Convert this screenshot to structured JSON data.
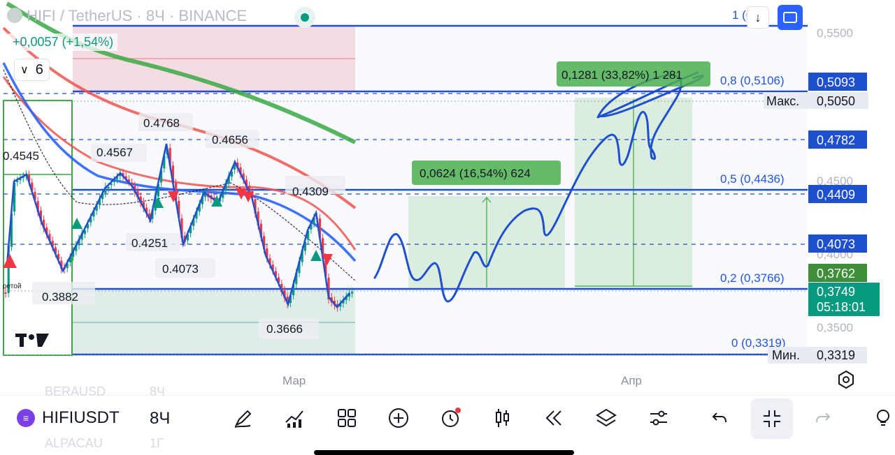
{
  "header": {
    "symbol": "HIFI / TetherUS",
    "interval": "8Ч",
    "exchange": "BINANCE",
    "change": "+0,0057 (+1,54%)",
    "collapse_count": "6"
  },
  "chart_data": {
    "type": "candlestick",
    "price_axis": {
      "ylim": [
        0.3319,
        0.55
      ],
      "ticks": [
        "0,5500",
        "0,4500",
        "0,4000",
        "0,3500"
      ]
    },
    "time_axis": {
      "ticks": [
        "Мар",
        "Апр"
      ]
    },
    "price_labels": [
      {
        "value": "0,5093",
        "kind": "line"
      },
      {
        "value": "0,5050",
        "kind": "max",
        "label": "Макс."
      },
      {
        "value": "0,4782",
        "kind": "line"
      },
      {
        "value": "0,4409",
        "kind": "line"
      },
      {
        "value": "0,4073",
        "kind": "line"
      },
      {
        "value": "0,3762",
        "kind": "green"
      },
      {
        "value": "0,3749",
        "kind": "current",
        "countdown": "05:18:01"
      },
      {
        "value": "0,3319",
        "kind": "min",
        "label": "Мин."
      }
    ],
    "fib_levels": [
      {
        "label": "1 (0,55",
        "price": 0.55
      },
      {
        "label": "0,8 (0,5106)",
        "price": 0.5106
      },
      {
        "label": "0,5 (0,4436)",
        "price": 0.4436
      },
      {
        "label": "0,2 (0,3766)",
        "price": 0.3766
      },
      {
        "label": "0 (0,3319)",
        "price": 0.3319
      }
    ],
    "swing_labels": [
      "0.4545",
      "0.4567",
      "0.4768",
      "0.4656",
      "0.4309",
      "0.4251",
      "0.4073",
      "0.3882",
      "0.3666"
    ],
    "measure_labels": [
      "0,0624 (16,54%) 624",
      "0,1281 (33,82%) 1 281"
    ],
    "small_label": "ретой",
    "colors": {
      "up": "#089981",
      "down": "#f23645",
      "line_blue": "#1e4fcf",
      "ma_green": "#3aa844",
      "ma_red": "#ef5350"
    }
  },
  "toolbar": {
    "symbol": "HIFIUSDT",
    "interval": "8Ч",
    "ghost_1": "BERAUSD",
    "ghost_1b": "8Ч",
    "ghost_2": "ALPACAU",
    "ghost_2b": "1Г"
  },
  "icons": [
    "pen-icon",
    "indicators-icon",
    "layouts-icon",
    "add-icon",
    "alert-icon",
    "chart-type-icon",
    "replay-icon",
    "layers-icon",
    "settings-icon",
    "undo-icon",
    "fullscreen-icon",
    "redo-icon",
    "bulb-icon"
  ]
}
